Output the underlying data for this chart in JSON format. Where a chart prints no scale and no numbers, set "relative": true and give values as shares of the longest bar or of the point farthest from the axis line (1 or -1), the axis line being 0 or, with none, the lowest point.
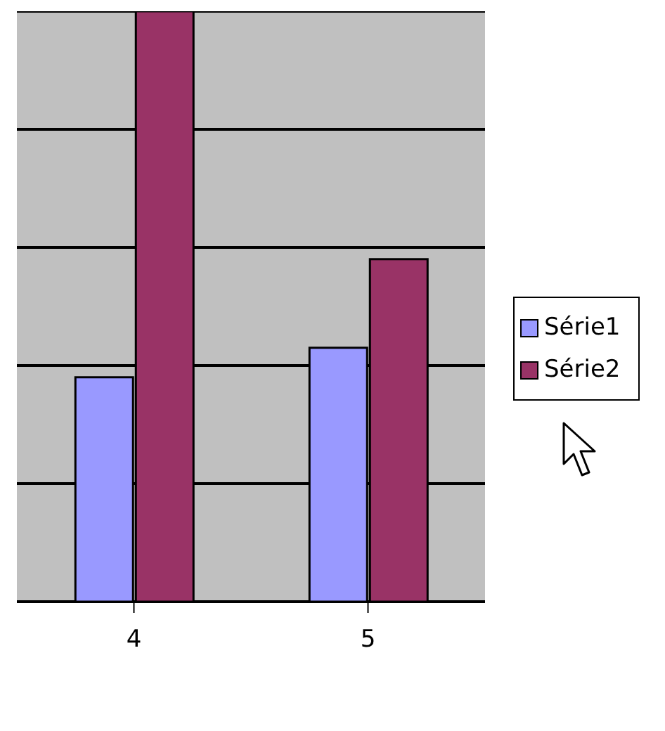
{
  "chart_data": {
    "type": "bar",
    "categories": [
      "4",
      "5"
    ],
    "relative": true,
    "grid": "y",
    "legend": "right",
    "series": [
      {
        "name": "Série1",
        "color": "#9999ff",
        "values": [
          0.38,
          0.43
        ]
      },
      {
        "name": "Série2",
        "color": "#993366",
        "values": [
          1,
          0.58
        ]
      }
    ]
  }
}
